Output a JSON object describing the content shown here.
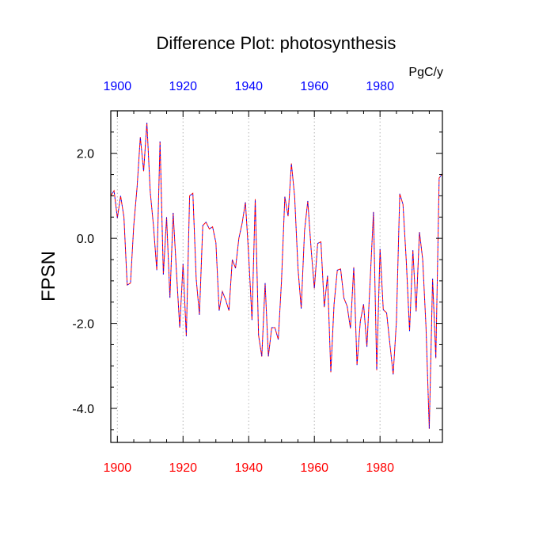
{
  "chart_data": {
    "type": "line",
    "title": "Difference Plot: photosynthesis",
    "units": "PgC/y",
    "xlabel": "",
    "ylabel": "FPSN",
    "xlim": [
      1898,
      1999
    ],
    "ylim": [
      -4.8,
      3.0
    ],
    "x_ticks": [
      "1900",
      "1920",
      "1940",
      "1960",
      "1980"
    ],
    "x_tick_values": [
      1900,
      1920,
      1940,
      1960,
      1980
    ],
    "y_ticks": [
      "2.0",
      "0.0",
      "-2.0",
      "-4.0"
    ],
    "y_tick_values": [
      2.0,
      0.0,
      -2.0,
      -4.0
    ],
    "grid": "vertical dotted",
    "colors": {
      "bottom_axis_labels": "#ff0000",
      "top_axis_labels": "#0000ff",
      "series_a": "#ff0000",
      "series_b": "#0000ff"
    },
    "series": [
      {
        "x": [
          1898,
          1899,
          1900,
          1901,
          1902,
          1903,
          1904,
          1905,
          1906,
          1907,
          1908,
          1909,
          1910,
          1911,
          1912,
          1913,
          1914,
          1915,
          1916,
          1917,
          1918,
          1919,
          1920,
          1921,
          1922,
          1923,
          1924,
          1925,
          1926,
          1927,
          1928,
          1929,
          1930,
          1931,
          1932,
          1933,
          1934,
          1935,
          1936,
          1937,
          1938,
          1939,
          1940,
          1941,
          1942,
          1943,
          1944,
          1945,
          1946,
          1947,
          1948,
          1949,
          1950,
          1951,
          1952,
          1953,
          1954,
          1955,
          1956,
          1957,
          1958,
          1959,
          1960,
          1961,
          1962,
          1963,
          1964,
          1965,
          1966,
          1967,
          1968,
          1969,
          1970,
          1971,
          1972,
          1973,
          1974,
          1975,
          1976,
          1977,
          1978,
          1979,
          1980,
          1981,
          1982,
          1983,
          1984,
          1985,
          1986,
          1987,
          1988,
          1989,
          1990,
          1991,
          1992,
          1993,
          1994,
          1995,
          1996,
          1997,
          1998,
          1999
        ],
        "values": [
          1.0,
          1.12,
          0.48,
          1.0,
          0.5,
          -1.1,
          -1.05,
          0.3,
          1.2,
          2.38,
          1.58,
          2.72,
          1.1,
          0.3,
          -0.75,
          2.28,
          -0.85,
          0.5,
          -1.4,
          0.6,
          -0.8,
          -2.1,
          -0.6,
          -2.3,
          1.0,
          1.06,
          -0.95,
          -1.8,
          0.3,
          0.38,
          0.22,
          0.27,
          -0.1,
          -1.7,
          -1.25,
          -1.45,
          -1.7,
          -0.5,
          -0.7,
          0.0,
          0.35,
          0.85,
          -0.4,
          -1.92,
          0.92,
          -2.28,
          -2.78,
          -1.05,
          -2.78,
          -2.1,
          -2.1,
          -2.38,
          -1.0,
          0.98,
          0.52,
          1.76,
          0.98,
          -0.7,
          -1.65,
          0.18,
          0.88,
          -0.25,
          -1.18,
          -0.12,
          -0.08,
          -1.62,
          -0.88,
          -3.15,
          -1.55,
          -0.75,
          -0.72,
          -1.4,
          -1.6,
          -2.12,
          -0.68,
          -2.98,
          -1.95,
          -1.55,
          -2.55,
          -1.0,
          0.62,
          -3.1,
          -0.25,
          -1.68,
          -1.75,
          -2.48,
          -3.2,
          -1.95,
          1.05,
          0.8,
          -0.55,
          -2.18,
          -0.28,
          -1.72,
          0.15,
          -0.5,
          -2.1,
          -4.48,
          -0.95,
          -2.82,
          1.42,
          1.52
        ]
      }
    ]
  }
}
